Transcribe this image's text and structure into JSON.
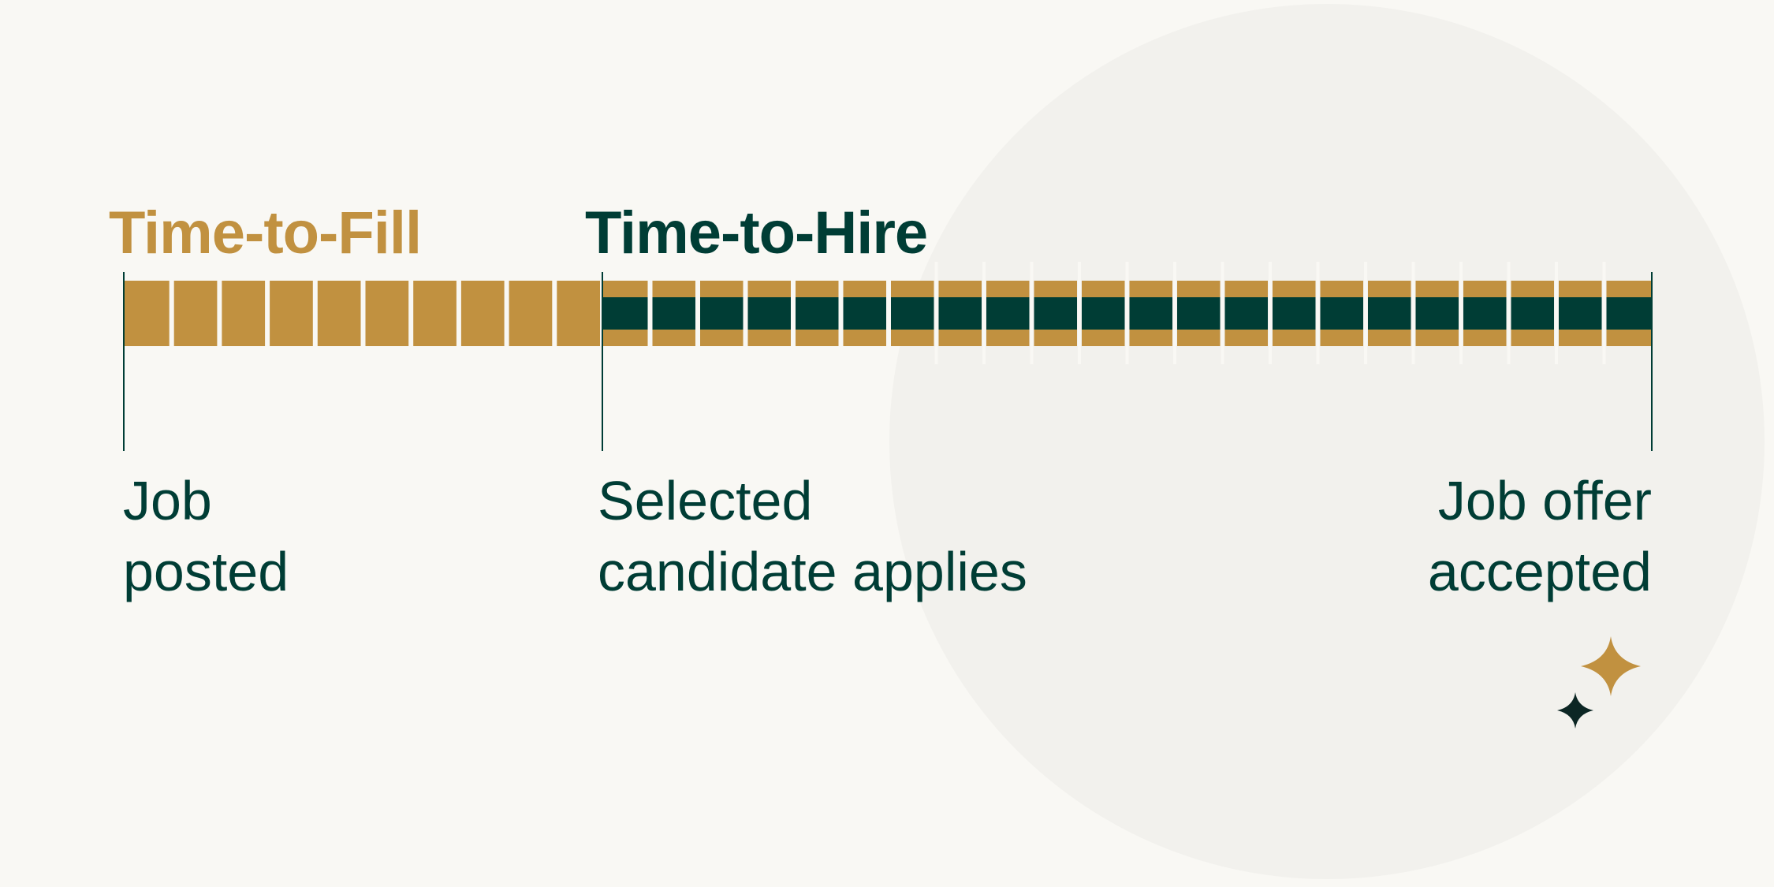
{
  "titles": {
    "time_to_fill": "Time-to-Fill",
    "time_to_hire": "Time-to-Hire"
  },
  "milestones": [
    {
      "line1": "Job",
      "line2": "posted"
    },
    {
      "line1": "Selected",
      "line2": "candidate applies"
    },
    {
      "line1": "Job offer",
      "line2": "accepted"
    }
  ],
  "colors": {
    "gold": "#c19140",
    "dark_green": "#003d35",
    "background": "#f9f8f4",
    "circle": "#f2f1ed",
    "star_dark": "#0c2624"
  },
  "icons": [
    "sparkle-large-icon",
    "sparkle-small-icon"
  ]
}
